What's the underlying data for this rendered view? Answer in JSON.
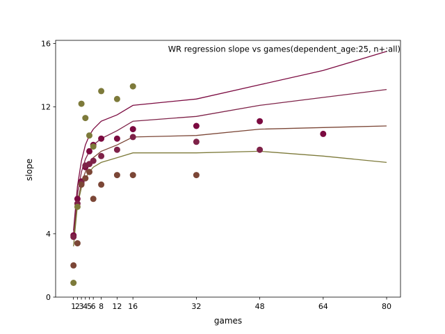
{
  "chart_data": {
    "type": "scatter",
    "title": "WR regression slope vs games(dependent_age:25, n+:all)",
    "xlabel": "games",
    "ylabel": "slope",
    "xlim": [
      -3.5,
      83.5
    ],
    "ylim": [
      0,
      16.2
    ],
    "xticks": [
      1,
      2,
      3,
      4,
      5,
      6,
      8,
      12,
      16,
      32,
      48,
      64,
      80
    ],
    "xtick_labels": [
      "1",
      "2",
      "3",
      "4",
      "5",
      "6",
      "8",
      "12",
      "16",
      "32",
      "48",
      "64",
      "80"
    ],
    "yticks": [
      0,
      4,
      12,
      16
    ],
    "ytick_labels": [
      "0",
      "4",
      "12",
      "16"
    ],
    "grid": false,
    "series": [
      {
        "color": "#7b0a40",
        "points": [
          [
            1,
            3.9
          ],
          [
            2,
            6.2
          ],
          [
            3,
            7.3
          ],
          [
            4,
            8.2
          ],
          [
            5,
            9.2
          ],
          [
            6,
            9.6
          ],
          [
            8,
            10.0
          ],
          [
            12,
            10.0
          ],
          [
            16,
            10.6
          ],
          [
            32,
            10.8
          ],
          [
            48,
            11.1
          ],
          [
            64,
            10.3
          ]
        ],
        "line": [
          [
            1,
            4.2
          ],
          [
            2,
            7.0
          ],
          [
            3,
            8.6
          ],
          [
            4,
            9.6
          ],
          [
            5,
            10.2
          ],
          [
            6,
            10.6
          ],
          [
            8,
            11.1
          ],
          [
            12,
            11.5
          ],
          [
            16,
            12.1
          ],
          [
            32,
            12.5
          ],
          [
            48,
            13.4
          ],
          [
            64,
            14.3
          ],
          [
            80,
            15.5
          ]
        ]
      },
      {
        "color": "#7e2248",
        "points": [
          [
            1,
            3.8
          ],
          [
            2,
            5.9
          ],
          [
            3,
            7.2
          ],
          [
            4,
            8.3
          ],
          [
            5,
            8.4
          ],
          [
            6,
            8.6
          ],
          [
            8,
            8.9
          ],
          [
            12,
            9.3
          ],
          [
            16,
            10.1
          ],
          [
            32,
            9.8
          ],
          [
            48,
            9.3
          ]
        ],
        "line": [
          [
            1,
            4.0
          ],
          [
            2,
            6.5
          ],
          [
            3,
            7.9
          ],
          [
            4,
            8.7
          ],
          [
            5,
            9.2
          ],
          [
            6,
            9.6
          ],
          [
            8,
            10.0
          ],
          [
            12,
            10.5
          ],
          [
            16,
            11.1
          ],
          [
            32,
            11.4
          ],
          [
            48,
            12.1
          ],
          [
            64,
            12.6
          ],
          [
            80,
            13.1
          ]
        ]
      },
      {
        "color": "#7b4636",
        "points": [
          [
            1,
            2.0
          ],
          [
            2,
            3.4
          ],
          [
            3,
            7.1
          ],
          [
            4,
            7.5
          ],
          [
            5,
            7.9
          ],
          [
            6,
            6.2
          ],
          [
            8,
            7.1
          ],
          [
            12,
            7.7
          ],
          [
            16,
            7.7
          ],
          [
            32,
            7.7
          ]
        ],
        "line": [
          [
            1,
            3.7
          ],
          [
            2,
            6.0
          ],
          [
            3,
            7.2
          ],
          [
            4,
            7.9
          ],
          [
            5,
            8.4
          ],
          [
            6,
            8.8
          ],
          [
            8,
            9.2
          ],
          [
            12,
            9.6
          ],
          [
            16,
            10.1
          ],
          [
            32,
            10.2
          ],
          [
            48,
            10.6
          ],
          [
            64,
            10.7
          ],
          [
            80,
            10.8
          ]
        ]
      },
      {
        "color": "#7d7a3a",
        "points": [
          [
            1,
            0.9
          ],
          [
            2,
            5.7
          ],
          [
            3,
            12.2
          ],
          [
            4,
            11.3
          ],
          [
            5,
            10.2
          ],
          [
            6,
            9.5
          ],
          [
            8,
            13.0
          ],
          [
            12,
            12.5
          ],
          [
            16,
            13.3
          ]
        ],
        "line": [
          [
            1,
            3.2
          ],
          [
            2,
            5.8
          ],
          [
            3,
            6.9
          ],
          [
            4,
            7.5
          ],
          [
            5,
            7.9
          ],
          [
            6,
            8.2
          ],
          [
            8,
            8.5
          ],
          [
            12,
            8.8
          ],
          [
            16,
            9.1
          ],
          [
            32,
            9.1
          ],
          [
            48,
            9.2
          ],
          [
            64,
            8.9
          ],
          [
            80,
            8.5
          ]
        ]
      }
    ]
  }
}
